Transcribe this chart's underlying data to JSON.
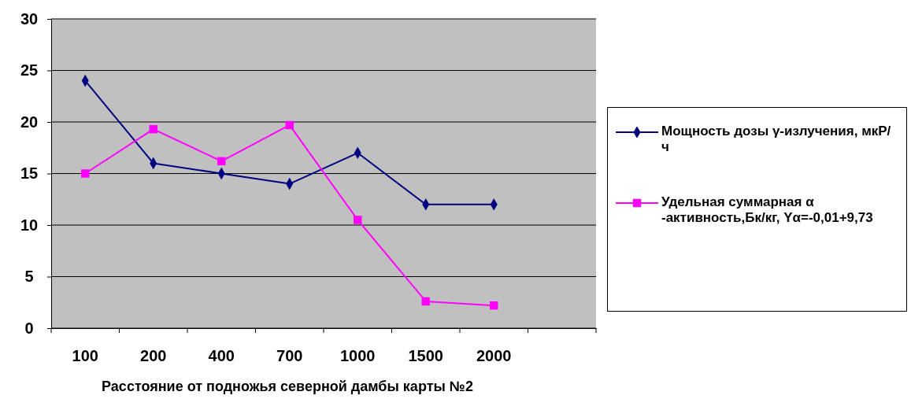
{
  "chart_data": {
    "type": "line",
    "xlabel": "Расстояние  от подножья северной дамбы карты №2",
    "categories": [
      "100",
      "200",
      "400",
      "700",
      "1000",
      "1500",
      "2000",
      null
    ],
    "series": [
      {
        "name": "Мощность дозы γ-излучения, мкР/ч",
        "color": "#000080",
        "marker": "diamond",
        "values": [
          24,
          16,
          15,
          14,
          17,
          12,
          12,
          null
        ]
      },
      {
        "name": "Удельная суммарная α -активность,Бк/кг, Yα=-0,01+9,73",
        "color": "#ff00ff",
        "marker": "square",
        "values": [
          15,
          19.3,
          16.2,
          19.7,
          10.5,
          2.6,
          2.2,
          null
        ]
      }
    ],
    "ylim": [
      0,
      30
    ],
    "yticks": [
      0,
      5,
      10,
      15,
      20,
      25,
      30
    ],
    "grid": "y",
    "legend": "right"
  }
}
